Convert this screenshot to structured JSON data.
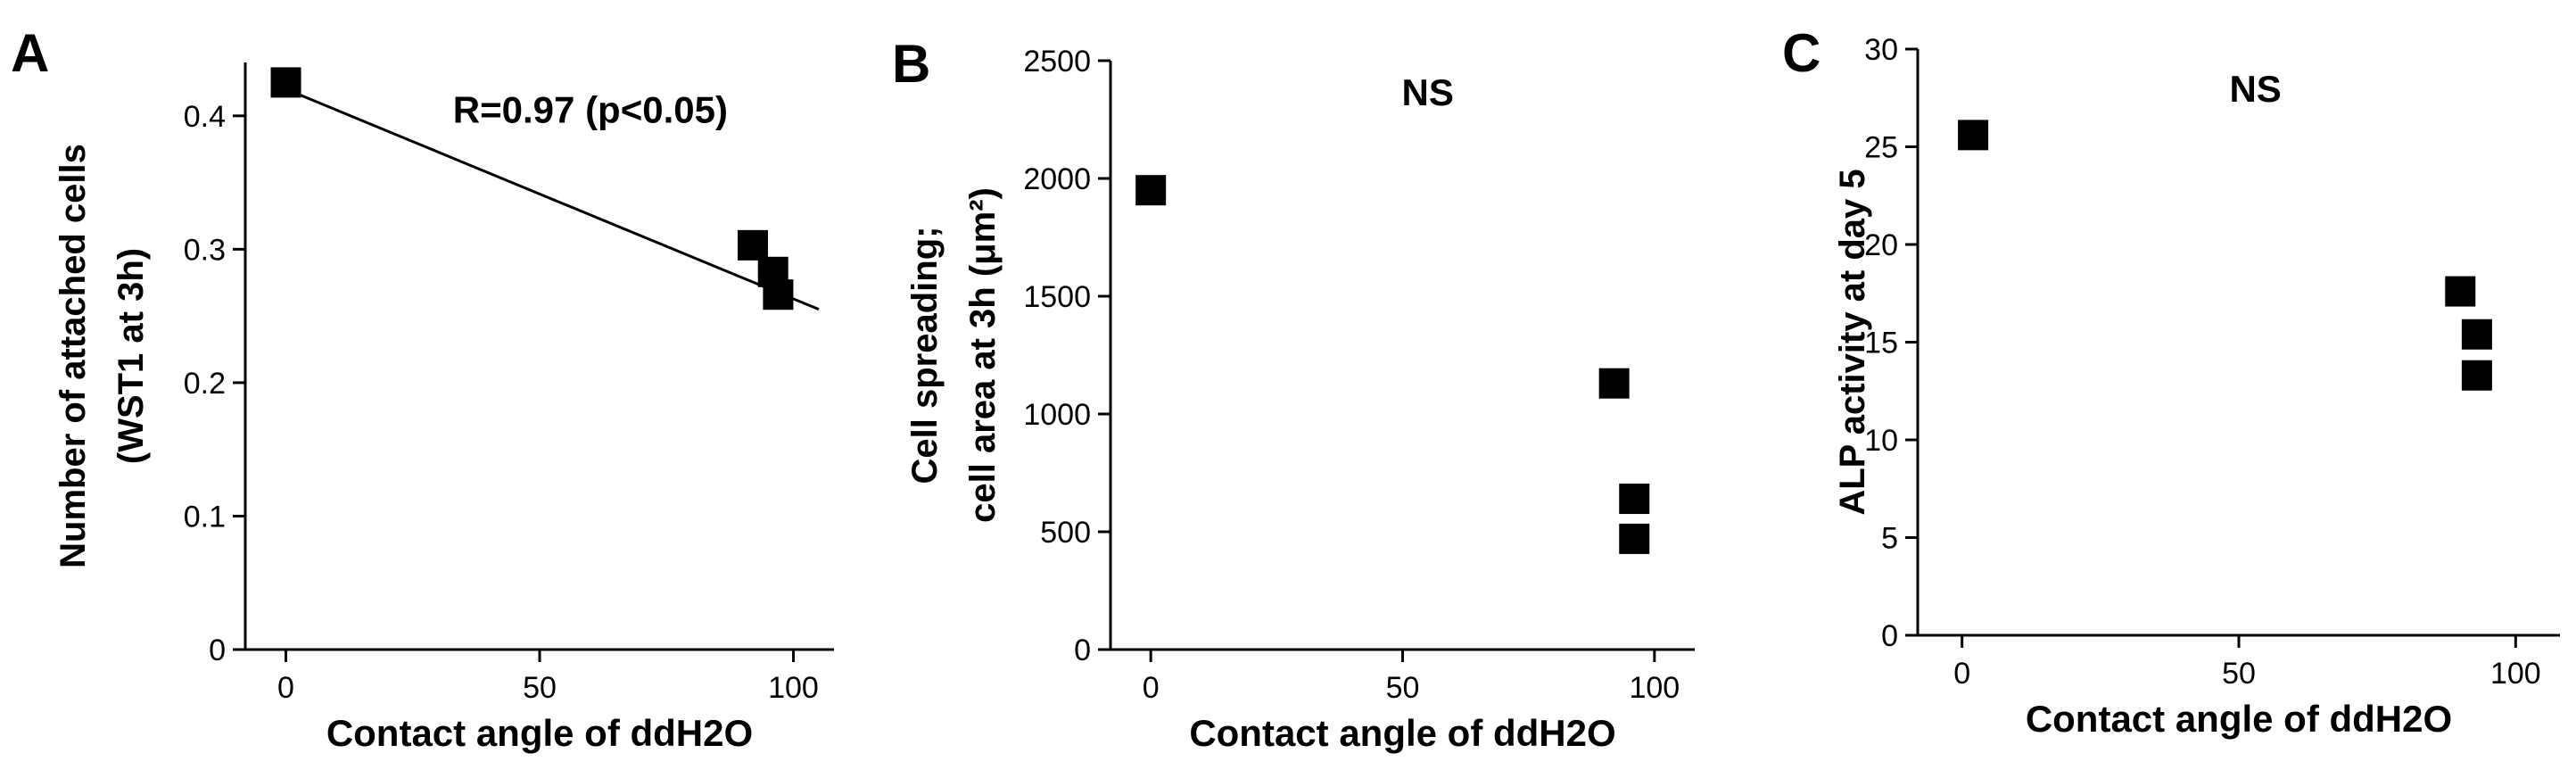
{
  "chart_data": [
    {
      "type": "scatter",
      "panel_label": "A",
      "title": "",
      "xlabel": "Contact angle of ddH2O",
      "ylabel_lines": [
        "Number of attached cells",
        "(WST1 at 3h)"
      ],
      "xlim": [
        -8,
        108
      ],
      "ylim": [
        0,
        0.44
      ],
      "x_ticks": [
        0,
        50,
        100
      ],
      "x_tick_labels": [
        "0",
        "50",
        "100"
      ],
      "y_ticks": [
        0,
        0.1,
        0.2,
        0.3,
        0.4
      ],
      "y_tick_labels": [
        "0",
        "0.1",
        "0.2",
        "0.3",
        "0.4"
      ],
      "points": [
        {
          "x": 0,
          "y": 0.425
        },
        {
          "x": 92,
          "y": 0.303
        },
        {
          "x": 96,
          "y": 0.283
        },
        {
          "x": 97,
          "y": 0.266
        }
      ],
      "fit_line": {
        "x1": 0,
        "y1": 0.42,
        "x2": 105,
        "y2": 0.255
      },
      "annotation": "R=0.97 (p<0.05)",
      "annotation_pos": {
        "x": 60,
        "y": 0.395
      },
      "grid": false,
      "legend": "none",
      "marker_color": "#000000"
    },
    {
      "type": "scatter",
      "panel_label": "B",
      "title": "",
      "xlabel": "Contact angle of ddH2O",
      "ylabel_lines": [
        "Cell spreading;",
        "cell area at 3h (μm²)"
      ],
      "xlim": [
        -8,
        108
      ],
      "ylim": [
        0,
        2500
      ],
      "x_ticks": [
        0,
        50,
        100
      ],
      "x_tick_labels": [
        "0",
        "50",
        "100"
      ],
      "y_ticks": [
        0,
        500,
        1000,
        1500,
        2000,
        2500
      ],
      "y_tick_labels": [
        "0",
        "500",
        "1000",
        "1500",
        "2000",
        "2500"
      ],
      "points": [
        {
          "x": 0,
          "y": 1950
        },
        {
          "x": 92,
          "y": 1130
        },
        {
          "x": 96,
          "y": 640
        },
        {
          "x": 96,
          "y": 470
        }
      ],
      "annotation": "NS",
      "annotation_pos": {
        "x": 55,
        "y": 2310
      },
      "grid": false,
      "legend": "none",
      "marker_color": "#000000"
    },
    {
      "type": "scatter",
      "panel_label": "C",
      "title": "",
      "xlabel": "Contact angle of ddH2O",
      "ylabel_lines": [
        "ALP activity at day 5"
      ],
      "xlim": [
        -8,
        108
      ],
      "ylim": [
        0,
        30
      ],
      "x_ticks": [
        0,
        50,
        100
      ],
      "x_tick_labels": [
        "0",
        "50",
        "100"
      ],
      "y_ticks": [
        0,
        5,
        10,
        15,
        20,
        25,
        30
      ],
      "y_tick_labels": [
        "0",
        "5",
        "10",
        "15",
        "20",
        "25",
        "30"
      ],
      "points": [
        {
          "x": 2,
          "y": 25.6
        },
        {
          "x": 90,
          "y": 17.6
        },
        {
          "x": 93,
          "y": 15.4
        },
        {
          "x": 93,
          "y": 13.3
        }
      ],
      "annotation": "NS",
      "annotation_pos": {
        "x": 53,
        "y": 27.3
      },
      "grid": false,
      "legend": "none",
      "marker_color": "#000000"
    }
  ]
}
